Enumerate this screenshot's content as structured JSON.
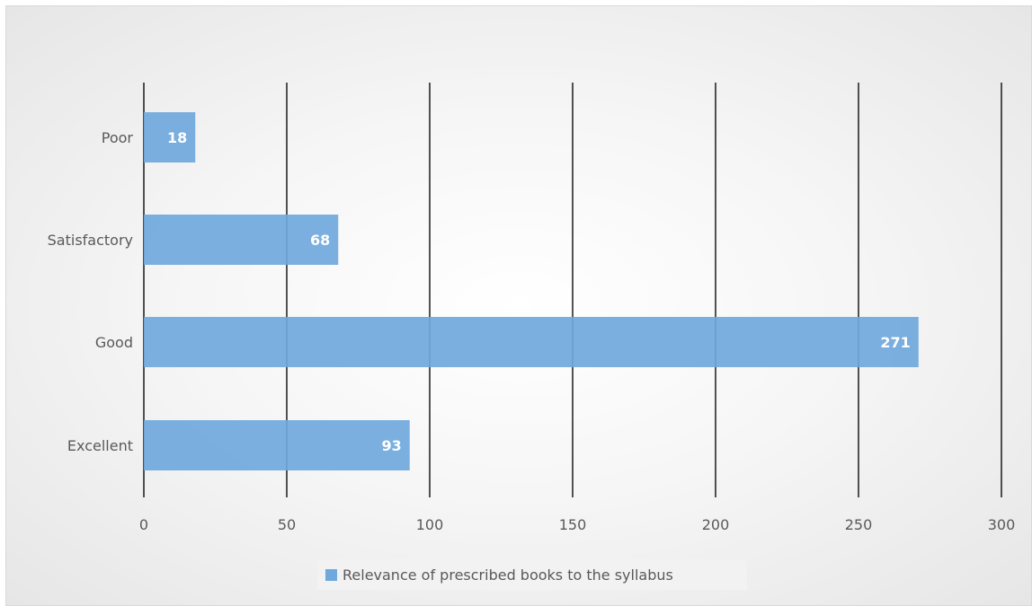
{
  "chart_data": {
    "type": "bar",
    "orientation": "horizontal",
    "categories": [
      "Poor",
      "Satisfactory",
      "Good",
      "Excellent"
    ],
    "series": [
      {
        "name": "Relevance of prescribed books to the syllabus",
        "values": [
          18,
          68,
          271,
          93
        ],
        "color": "#6fa8dc"
      }
    ],
    "x_ticks": [
      "0",
      "50",
      "100",
      "150",
      "200",
      "250",
      "300"
    ],
    "xlim": [
      0,
      300
    ],
    "grid": "vertical",
    "legend_position": "bottom",
    "data_labels": [
      "18",
      "68",
      "271",
      "93"
    ]
  }
}
